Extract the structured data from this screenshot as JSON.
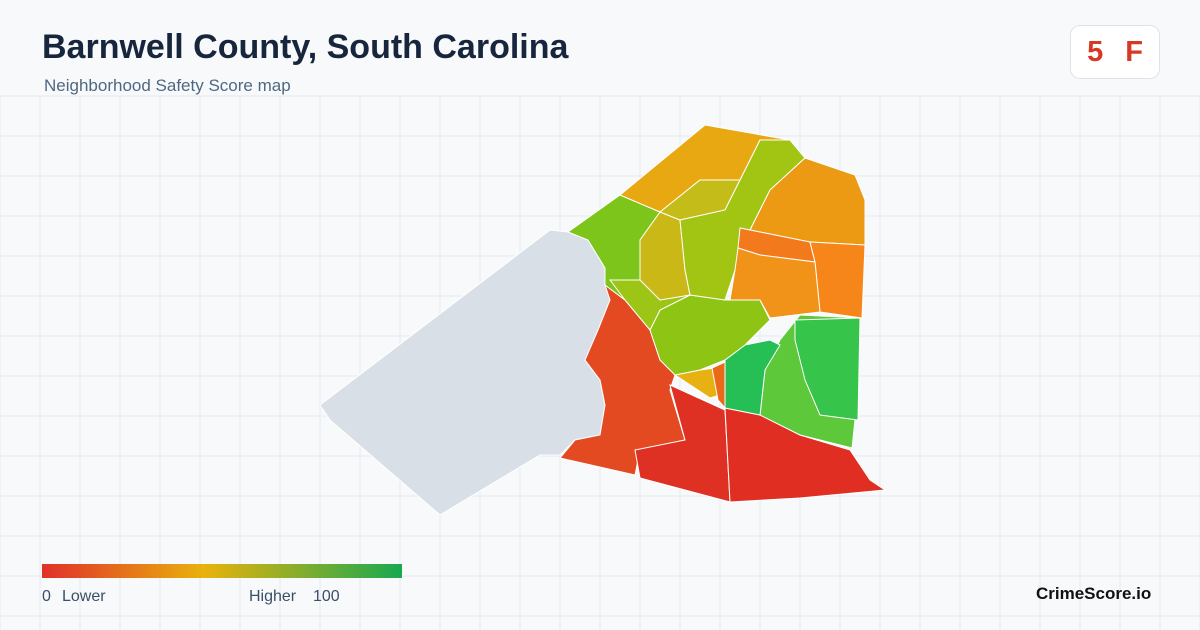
{
  "header": {
    "title": "Barnwell County, South Carolina",
    "subtitle": "Neighborhood Safety Score map"
  },
  "score": {
    "value": 5,
    "grade": "F"
  },
  "legend": {
    "min": 0,
    "min_label": "Lower",
    "max_label": "Higher",
    "max": 100
  },
  "footer": {
    "brand": "CrimeScore.io"
  }
}
